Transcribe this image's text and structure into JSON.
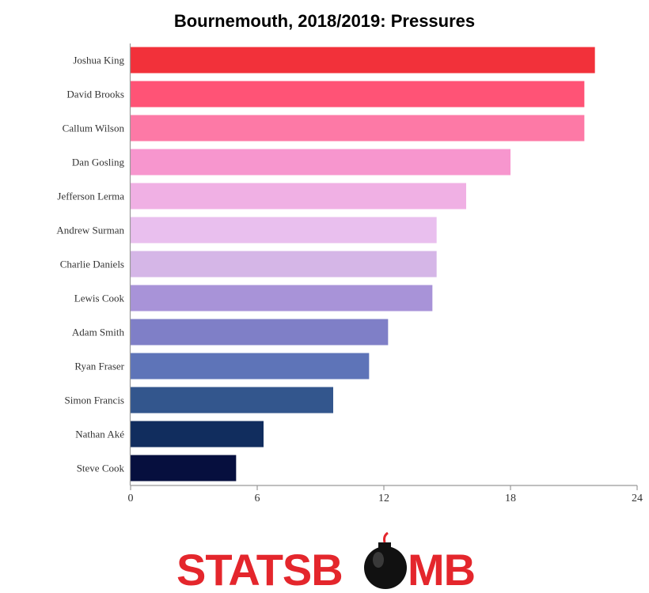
{
  "chart_data": {
    "type": "bar",
    "orientation": "horizontal",
    "title": "Bournemouth, 2018/2019: Pressures",
    "xlabel": "",
    "ylabel": "",
    "categories": [
      "Joshua King",
      "David Brooks",
      "Callum Wilson",
      "Dan Gosling",
      "Jefferson Lerma",
      "Andrew Surman",
      "Charlie Daniels",
      "Lewis Cook",
      "Adam Smith",
      "Ryan Fraser",
      "Simon Francis",
      "Nathan Aké",
      "Steve Cook"
    ],
    "values": [
      22,
      21.5,
      21.5,
      18,
      15.9,
      14.5,
      14.5,
      14.3,
      12.2,
      11.3,
      9.6,
      6.3,
      5
    ],
    "colors": [
      "#f2313a",
      "#ff5376",
      "#fd79a6",
      "#f796ce",
      "#f0b0e4",
      "#e9bfee",
      "#d5b6e7",
      "#a893d8",
      "#7f7fc7",
      "#5e74b8",
      "#33568d",
      "#112d5e",
      "#060f3e"
    ],
    "xlim": [
      0,
      24
    ],
    "xticks": [
      0,
      6,
      12,
      18,
      24
    ],
    "grid": false,
    "legend": "none"
  },
  "logo": {
    "text_left": "STATSB",
    "text_right": "MB",
    "name": "statsbomb-logo",
    "icon": "bomb-icon"
  }
}
